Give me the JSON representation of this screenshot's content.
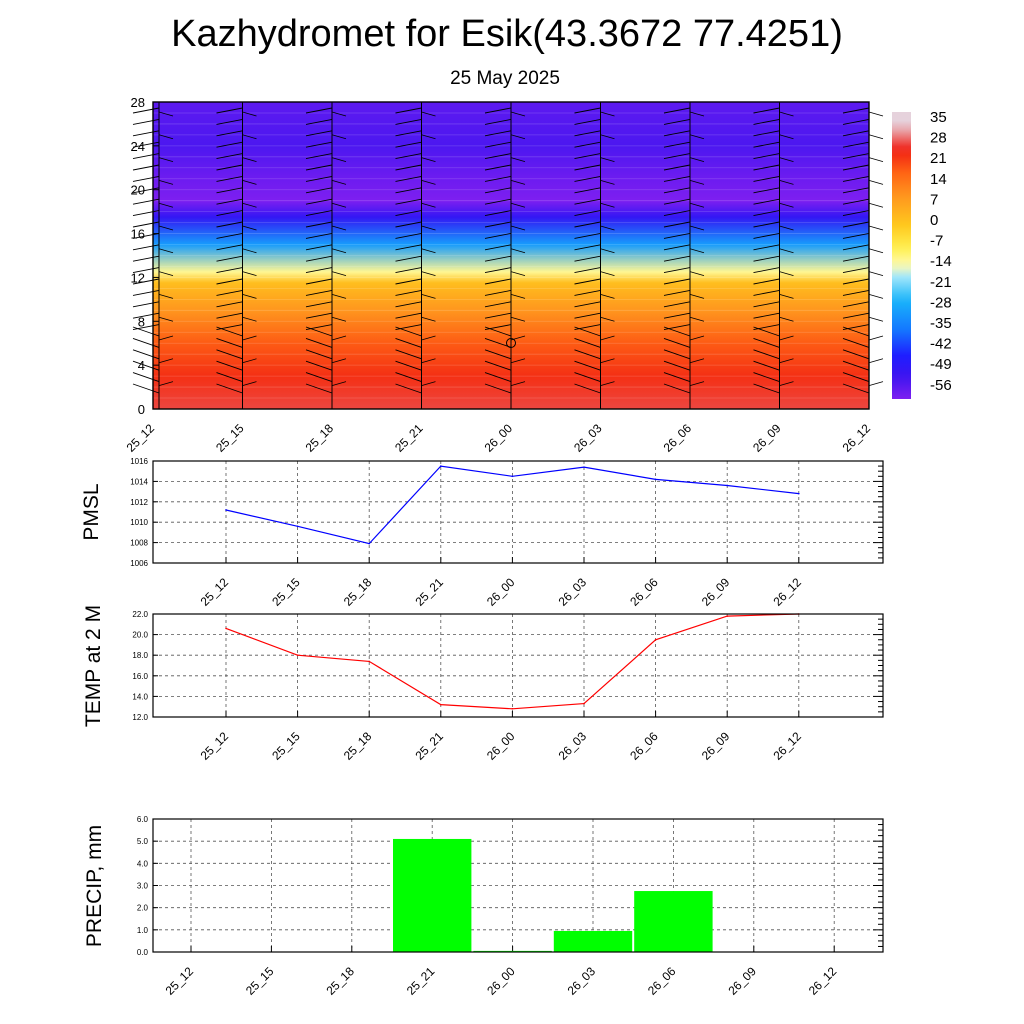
{
  "header": {
    "title": "Kazhydromet for Esik(43.3672 77.4251)",
    "date": "25 May 2025"
  },
  "time_labels": [
    "25_12",
    "25_15",
    "25_18",
    "25_21",
    "26_00",
    "26_03",
    "26_06",
    "26_09",
    "26_12"
  ],
  "colors": {
    "pmsl_line": "#0000ff",
    "temp_line": "#ff0000",
    "precip_bar": "#00ff00",
    "grid": "#000000"
  },
  "chart_data": [
    {
      "type": "heatmap",
      "name": "vertical-temperature-profile",
      "x": [
        "25_12",
        "25_15",
        "25_18",
        "25_21",
        "26_00",
        "26_03",
        "26_06",
        "26_09",
        "26_12"
      ],
      "y_ticks": [
        0,
        4,
        8,
        12,
        16,
        20,
        24,
        28
      ],
      "ylim": [
        0,
        28
      ],
      "colorbar": {
        "ticks": [
          35,
          28,
          21,
          14,
          7,
          0,
          -7,
          -14,
          -21,
          -28,
          -35,
          -42,
          -49,
          -56
        ]
      },
      "profile": [
        {
          "level": 0,
          "value": 28
        },
        {
          "level": 3,
          "value": 24
        },
        {
          "level": 6,
          "value": 19
        },
        {
          "level": 9,
          "value": 10
        },
        {
          "level": 11.5,
          "value": 2
        },
        {
          "level": 12.5,
          "value": -12
        },
        {
          "level": 15,
          "value": -30
        },
        {
          "level": 17.5,
          "value": -50
        },
        {
          "level": 19,
          "value": -60
        },
        {
          "level": 21,
          "value": -58
        },
        {
          "level": 24,
          "value": -54
        },
        {
          "level": 28,
          "value": -56
        }
      ]
    },
    {
      "type": "line",
      "name": "pmsl",
      "ylabel": "PMSL",
      "ylim": [
        1006,
        1016
      ],
      "y_ticks": [
        "1006",
        "1008",
        "1010",
        "1012",
        "1014",
        "1016"
      ],
      "categories": [
        "25_12",
        "25_15",
        "25_18",
        "25_21",
        "26_00",
        "26_03",
        "26_06",
        "26_09",
        "26_12"
      ],
      "values": [
        1011.2,
        1009.6,
        1007.9,
        1015.5,
        1014.5,
        1015.4,
        1014.2,
        1013.6,
        1012.8
      ]
    },
    {
      "type": "line",
      "name": "temperature-2m",
      "ylabel": "TEMP at 2 M",
      "ylim": [
        12.0,
        22.0
      ],
      "y_ticks": [
        "12.0",
        "14.0",
        "16.0",
        "18.0",
        "20.0",
        "22.0"
      ],
      "categories": [
        "25_12",
        "25_15",
        "25_18",
        "25_21",
        "26_00",
        "26_03",
        "26_06",
        "26_09",
        "26_12"
      ],
      "values": [
        20.6,
        18.0,
        17.4,
        13.2,
        12.8,
        13.3,
        19.5,
        21.8,
        22.0
      ]
    },
    {
      "type": "bar",
      "name": "precipitation",
      "ylabel": "PRECIP, mm",
      "ylim": [
        0,
        6
      ],
      "y_ticks": [
        "0.0",
        "1.0",
        "2.0",
        "3.0",
        "4.0",
        "5.0",
        "6.0"
      ],
      "categories": [
        "25_12",
        "25_15",
        "25_18",
        "25_21",
        "26_00",
        "26_03",
        "26_06",
        "26_09",
        "26_12"
      ],
      "values": [
        0,
        0,
        0,
        5.1,
        0.05,
        0.95,
        2.75,
        0,
        0
      ]
    }
  ]
}
